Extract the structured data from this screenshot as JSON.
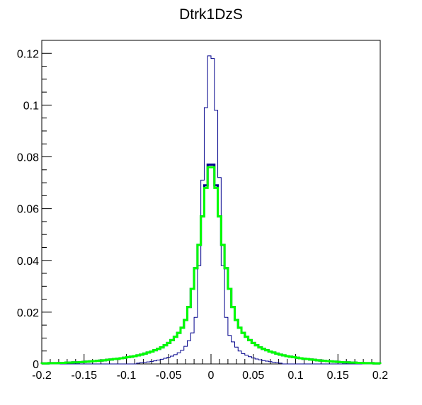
{
  "chart_data": {
    "type": "histogram",
    "title": "Dtrk1DzS",
    "xlabel": "",
    "ylabel": "",
    "xlim": [
      -0.2,
      0.2
    ],
    "ylim": [
      0,
      0.125
    ],
    "grid": false,
    "legend": "none",
    "x_ticks": [
      "-0.2",
      "-0.15",
      "-0.1",
      "-0.05",
      "0",
      "0.05",
      "0.1",
      "0.15",
      "0.2"
    ],
    "y_ticks": [
      "0",
      "0.02",
      "0.04",
      "0.06",
      "0.08",
      "0.1",
      "0.12"
    ],
    "bin_edges_range": [
      -0.2,
      0.2
    ],
    "n_bins": 100,
    "series": [
      {
        "color": "#00008b",
        "style": "thin step",
        "values": [
          0,
          0,
          0,
          0,
          0,
          0,
          0,
          0,
          0,
          0,
          0,
          0,
          0,
          0,
          0,
          0,
          0,
          0,
          0,
          0,
          0,
          0,
          0,
          0,
          0,
          0,
          0,
          0,
          0.0003,
          0.0005,
          0.0006,
          0.0008,
          0.001,
          0.0012,
          0.0015,
          0.0018,
          0.0022,
          0.0026,
          0.003,
          0.0036,
          0.0043,
          0.0053,
          0.0068,
          0.009,
          0.012,
          0.018,
          0.038,
          0.071,
          0.099,
          0.119,
          0.118,
          0.098,
          0.072,
          0.038,
          0.018,
          0.011,
          0.0085,
          0.0065,
          0.005,
          0.004,
          0.0034,
          0.0028,
          0.0023,
          0.0019,
          0.0016,
          0.0013,
          0.0011,
          0.0009,
          0.0007,
          0.0005,
          0.0003,
          0,
          0,
          0,
          0,
          0,
          0,
          0,
          0,
          0,
          0,
          0,
          0,
          0,
          0,
          0,
          0,
          0,
          0,
          0,
          0,
          0,
          0,
          0,
          0,
          0,
          0,
          0,
          0,
          0
        ]
      },
      {
        "color": "#00008b",
        "style": "thick step",
        "values": [
          0.0002,
          0.0002,
          0.0003,
          0.0003,
          0.0003,
          0.0004,
          0.0004,
          0.0005,
          0.0005,
          0.0006,
          0.0006,
          0.0007,
          0.0008,
          0.0009,
          0.001,
          0.0011,
          0.0012,
          0.0013,
          0.0014,
          0.0016,
          0.0017,
          0.0019,
          0.002,
          0.0022,
          0.0024,
          0.0026,
          0.0028,
          0.003,
          0.0033,
          0.0036,
          0.004,
          0.0044,
          0.0048,
          0.0053,
          0.0058,
          0.0064,
          0.0072,
          0.0081,
          0.0092,
          0.0105,
          0.012,
          0.014,
          0.017,
          0.022,
          0.029,
          0.037,
          0.046,
          0.057,
          0.069,
          0.077,
          0.077,
          0.069,
          0.057,
          0.046,
          0.037,
          0.029,
          0.022,
          0.017,
          0.014,
          0.012,
          0.0105,
          0.0092,
          0.0081,
          0.0072,
          0.0064,
          0.0058,
          0.0053,
          0.0048,
          0.0044,
          0.004,
          0.0036,
          0.0033,
          0.003,
          0.0028,
          0.0026,
          0.0024,
          0.0022,
          0.002,
          0.0019,
          0.0017,
          0.0016,
          0.0014,
          0.0013,
          0.0012,
          0.0011,
          0.001,
          0.0009,
          0.0008,
          0.0007,
          0.0006,
          0.0006,
          0.0005,
          0.0005,
          0.0004,
          0.0004,
          0.0003,
          0.0003,
          0.0003,
          0.0002,
          0.0002
        ]
      },
      {
        "color": "#00ff00",
        "style": "thick step",
        "values": [
          0.0002,
          0.0002,
          0.0003,
          0.0003,
          0.0003,
          0.0004,
          0.0004,
          0.0005,
          0.0005,
          0.0006,
          0.0006,
          0.0007,
          0.0008,
          0.0009,
          0.001,
          0.0011,
          0.0012,
          0.0013,
          0.0014,
          0.0016,
          0.0017,
          0.0019,
          0.002,
          0.0022,
          0.0024,
          0.0026,
          0.0028,
          0.003,
          0.0033,
          0.0036,
          0.004,
          0.0044,
          0.0048,
          0.0053,
          0.0058,
          0.0064,
          0.0072,
          0.0081,
          0.0092,
          0.0105,
          0.012,
          0.014,
          0.017,
          0.022,
          0.029,
          0.037,
          0.046,
          0.057,
          0.068,
          0.076,
          0.076,
          0.068,
          0.057,
          0.046,
          0.037,
          0.029,
          0.022,
          0.017,
          0.014,
          0.012,
          0.0105,
          0.0092,
          0.0081,
          0.0072,
          0.0064,
          0.0058,
          0.0053,
          0.0048,
          0.0044,
          0.004,
          0.0036,
          0.0033,
          0.003,
          0.0028,
          0.0026,
          0.0024,
          0.0022,
          0.002,
          0.0019,
          0.0017,
          0.0016,
          0.0014,
          0.0013,
          0.0012,
          0.0011,
          0.001,
          0.0009,
          0.0008,
          0.0007,
          0.0006,
          0.0006,
          0.0005,
          0.0005,
          0.0004,
          0.0004,
          0.0003,
          0.0003,
          0.0003,
          0.0002,
          0.0002
        ]
      }
    ]
  }
}
